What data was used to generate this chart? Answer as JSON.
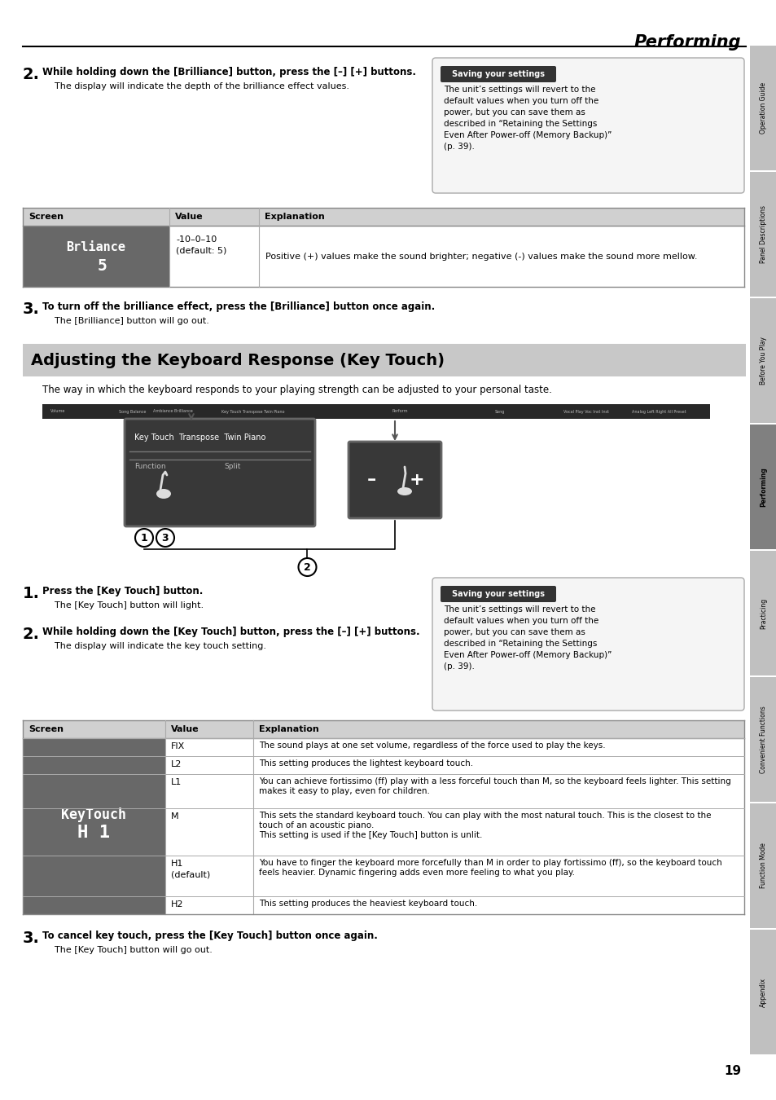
{
  "page_title": "Performing",
  "page_number": "19",
  "bg_color": "#ffffff",
  "sidebar_labels": [
    "Operation Guide",
    "Panel Descriptions",
    "Before You Play",
    "Performing",
    "Practicing",
    "Convenient Functions",
    "Function Mode",
    "Appendix"
  ],
  "sidebar_active": "Performing",
  "saving_label_text": "Saving your settings",
  "saving1_body": "The unit’s settings will revert to the\ndefault values when you turn off the\npower, but you can save them as\ndescribed in “Retaining the Settings\nEven After Power-off (Memory Backup)”\n(p. 39).",
  "saving2_body": "The unit’s settings will revert to the\ndefault values when you turn off the\npower, but you can save them as\ndescribed in “Retaining the Settings\nEven After Power-off (Memory Backup)”\n(p. 39).",
  "step2_num": "2.",
  "step2_bold": "While holding down the [Brilliance] button, press the [–] [+] buttons.",
  "step2_sub": "The display will indicate the depth of the brilliance effect values.",
  "table1_headers": [
    "Screen",
    "Value",
    "Explanation"
  ],
  "table1_value": "-10–0–10\n(default: 5)",
  "table1_explanation": "Positive (+) values make the sound brighter; negative (-) values make the sound more mellow.",
  "step3_num": "3.",
  "step3_bold": "To turn off the brilliance effect, press the [Brilliance] button once again.",
  "step3_sub": "The [Brilliance] button will go out.",
  "section_header_text": "Adjusting the Keyboard Response (Key Touch)",
  "section_desc": "The way in which the keyboard responds to your playing strength can be adjusted to your personal taste.",
  "step_kt1_num": "1.",
  "step_kt1_bold": "Press the [Key Touch] button.",
  "step_kt1_sub": "The [Key Touch] button will light.",
  "step_kt2_num": "2.",
  "step_kt2_bold": "While holding down the [Key Touch] button, press the [–] [+] buttons.",
  "step_kt2_sub": "The display will indicate the key touch setting.",
  "table2_headers": [
    "Screen",
    "Value",
    "Explanation"
  ],
  "table2_rows": [
    [
      "FIX",
      "The sound plays at one set volume, regardless of the force used to play the keys."
    ],
    [
      "L2",
      "This setting produces the lightest keyboard touch."
    ],
    [
      "L1",
      "You can achieve fortissimo (ff) play with a less forceful touch than M, so the keyboard feels lighter. This setting\nmakes it easy to play, even for children."
    ],
    [
      "M",
      "This sets the standard keyboard touch. You can play with the most natural touch. This is the closest to the\ntouch of an acoustic piano.\nThis setting is used if the [Key Touch] button is unlit."
    ],
    [
      "H1\n(default)",
      "You have to finger the keyboard more forcefully than M in order to play fortissimo (ff), so the keyboard touch\nfeels heavier. Dynamic fingering adds even more feeling to what you play."
    ],
    [
      "H2",
      "This setting produces the heaviest keyboard touch."
    ]
  ],
  "step_kt3_num": "3.",
  "step_kt3_bold": "To cancel key touch, press the [Key Touch] button once again.",
  "step_kt3_sub": "The [Key Touch] button will go out."
}
